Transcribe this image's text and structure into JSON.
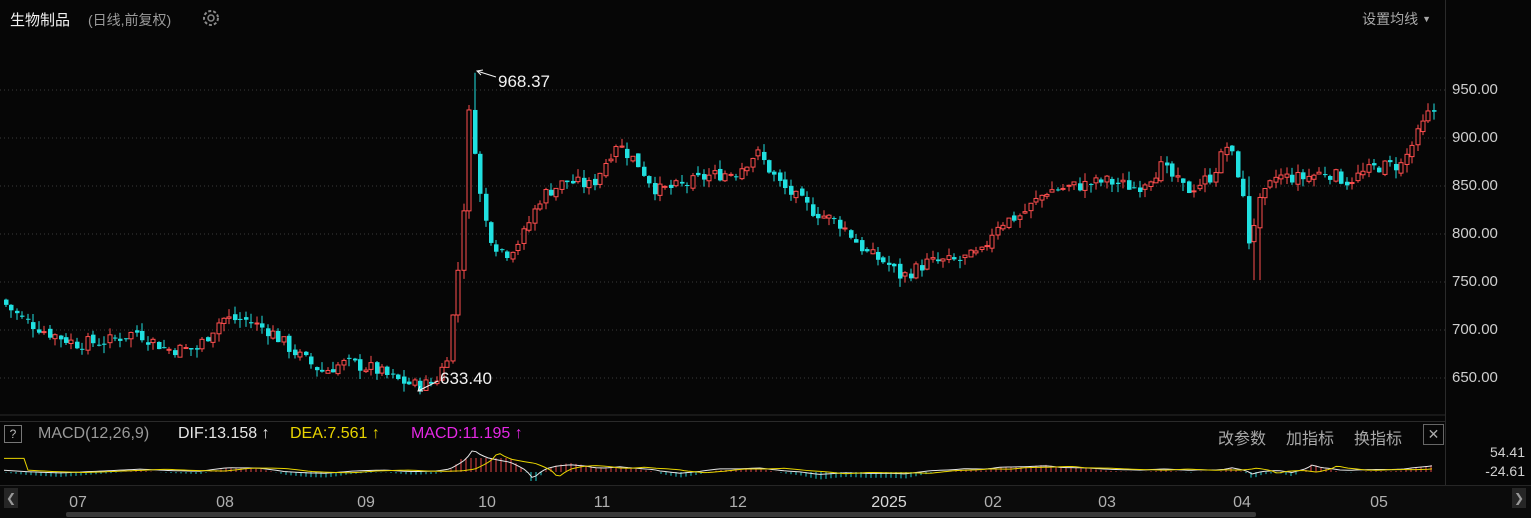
{
  "header": {
    "title": "生物制品",
    "subtitle": "(日线,前复权)",
    "ma_setting": "设置均线"
  },
  "chart_data": {
    "type": "candlestick",
    "y_axis": {
      "ticks": [
        "950.00",
        "900.00",
        "850.00",
        "800.00",
        "750.00",
        "700.00",
        "650.00"
      ],
      "range": [
        600,
        1000
      ]
    },
    "x_axis": {
      "labels": [
        "07",
        "08",
        "09",
        "10",
        "11",
        "12",
        "2025",
        "02",
        "03",
        "04",
        "05"
      ]
    },
    "annotations": {
      "high": "968.37",
      "low": "633.40"
    },
    "series_points": [
      {
        "t": 0,
        "v": 735
      },
      {
        "t": 25,
        "v": 712
      },
      {
        "t": 52,
        "v": 697
      },
      {
        "t": 80,
        "v": 686
      },
      {
        "t": 110,
        "v": 688
      },
      {
        "t": 140,
        "v": 698
      },
      {
        "t": 170,
        "v": 680
      },
      {
        "t": 200,
        "v": 680
      },
      {
        "t": 225,
        "v": 712
      },
      {
        "t": 250,
        "v": 710
      },
      {
        "t": 275,
        "v": 698
      },
      {
        "t": 300,
        "v": 675
      },
      {
        "t": 325,
        "v": 657
      },
      {
        "t": 350,
        "v": 666
      },
      {
        "t": 375,
        "v": 660
      },
      {
        "t": 400,
        "v": 648
      },
      {
        "t": 420,
        "v": 642
      },
      {
        "t": 437,
        "v": 645
      },
      {
        "t": 450,
        "v": 668
      },
      {
        "t": 458,
        "v": 728
      },
      {
        "t": 466,
        "v": 800
      },
      {
        "t": 473,
        "v": 935
      },
      {
        "t": 480,
        "v": 865
      },
      {
        "t": 487,
        "v": 820
      },
      {
        "t": 497,
        "v": 790
      },
      {
        "t": 510,
        "v": 780
      },
      {
        "t": 525,
        "v": 795
      },
      {
        "t": 545,
        "v": 840
      },
      {
        "t": 570,
        "v": 855
      },
      {
        "t": 595,
        "v": 850
      },
      {
        "t": 620,
        "v": 895
      },
      {
        "t": 640,
        "v": 875
      },
      {
        "t": 660,
        "v": 845
      },
      {
        "t": 685,
        "v": 850
      },
      {
        "t": 710,
        "v": 860
      },
      {
        "t": 740,
        "v": 865
      },
      {
        "t": 760,
        "v": 885
      },
      {
        "t": 785,
        "v": 850
      },
      {
        "t": 815,
        "v": 825
      },
      {
        "t": 845,
        "v": 810
      },
      {
        "t": 870,
        "v": 780
      },
      {
        "t": 890,
        "v": 770
      },
      {
        "t": 905,
        "v": 755
      },
      {
        "t": 930,
        "v": 770
      },
      {
        "t": 960,
        "v": 772
      },
      {
        "t": 985,
        "v": 780
      },
      {
        "t": 1000,
        "v": 810
      },
      {
        "t": 1025,
        "v": 820
      },
      {
        "t": 1050,
        "v": 845
      },
      {
        "t": 1080,
        "v": 850
      },
      {
        "t": 1110,
        "v": 855
      },
      {
        "t": 1140,
        "v": 848
      },
      {
        "t": 1165,
        "v": 870
      },
      {
        "t": 1190,
        "v": 845
      },
      {
        "t": 1215,
        "v": 860
      },
      {
        "t": 1232,
        "v": 895
      },
      {
        "t": 1246,
        "v": 840
      },
      {
        "t": 1252,
        "v": 790
      },
      {
        "t": 1262,
        "v": 830
      },
      {
        "t": 1280,
        "v": 860
      },
      {
        "t": 1305,
        "v": 858
      },
      {
        "t": 1330,
        "v": 865
      },
      {
        "t": 1350,
        "v": 855
      },
      {
        "t": 1380,
        "v": 870
      },
      {
        "t": 1405,
        "v": 872
      },
      {
        "t": 1422,
        "v": 905
      },
      {
        "t": 1434,
        "v": 928
      }
    ]
  },
  "macd": {
    "label": "MACD(12,26,9)",
    "dif": "DIF:13.158",
    "dea": "DEA:7.561",
    "macd_val": "MACD:11.195",
    "arrow": "↑",
    "tools": [
      "改参数",
      "加指标",
      "换指标"
    ],
    "ticks": [
      "54.41",
      "-24.61"
    ]
  },
  "colors": {
    "up": "#ff4e4e",
    "down": "#20e0e0",
    "dif": "#e6e6e6",
    "dea": "#e8d400",
    "macd": "#e528e5"
  }
}
